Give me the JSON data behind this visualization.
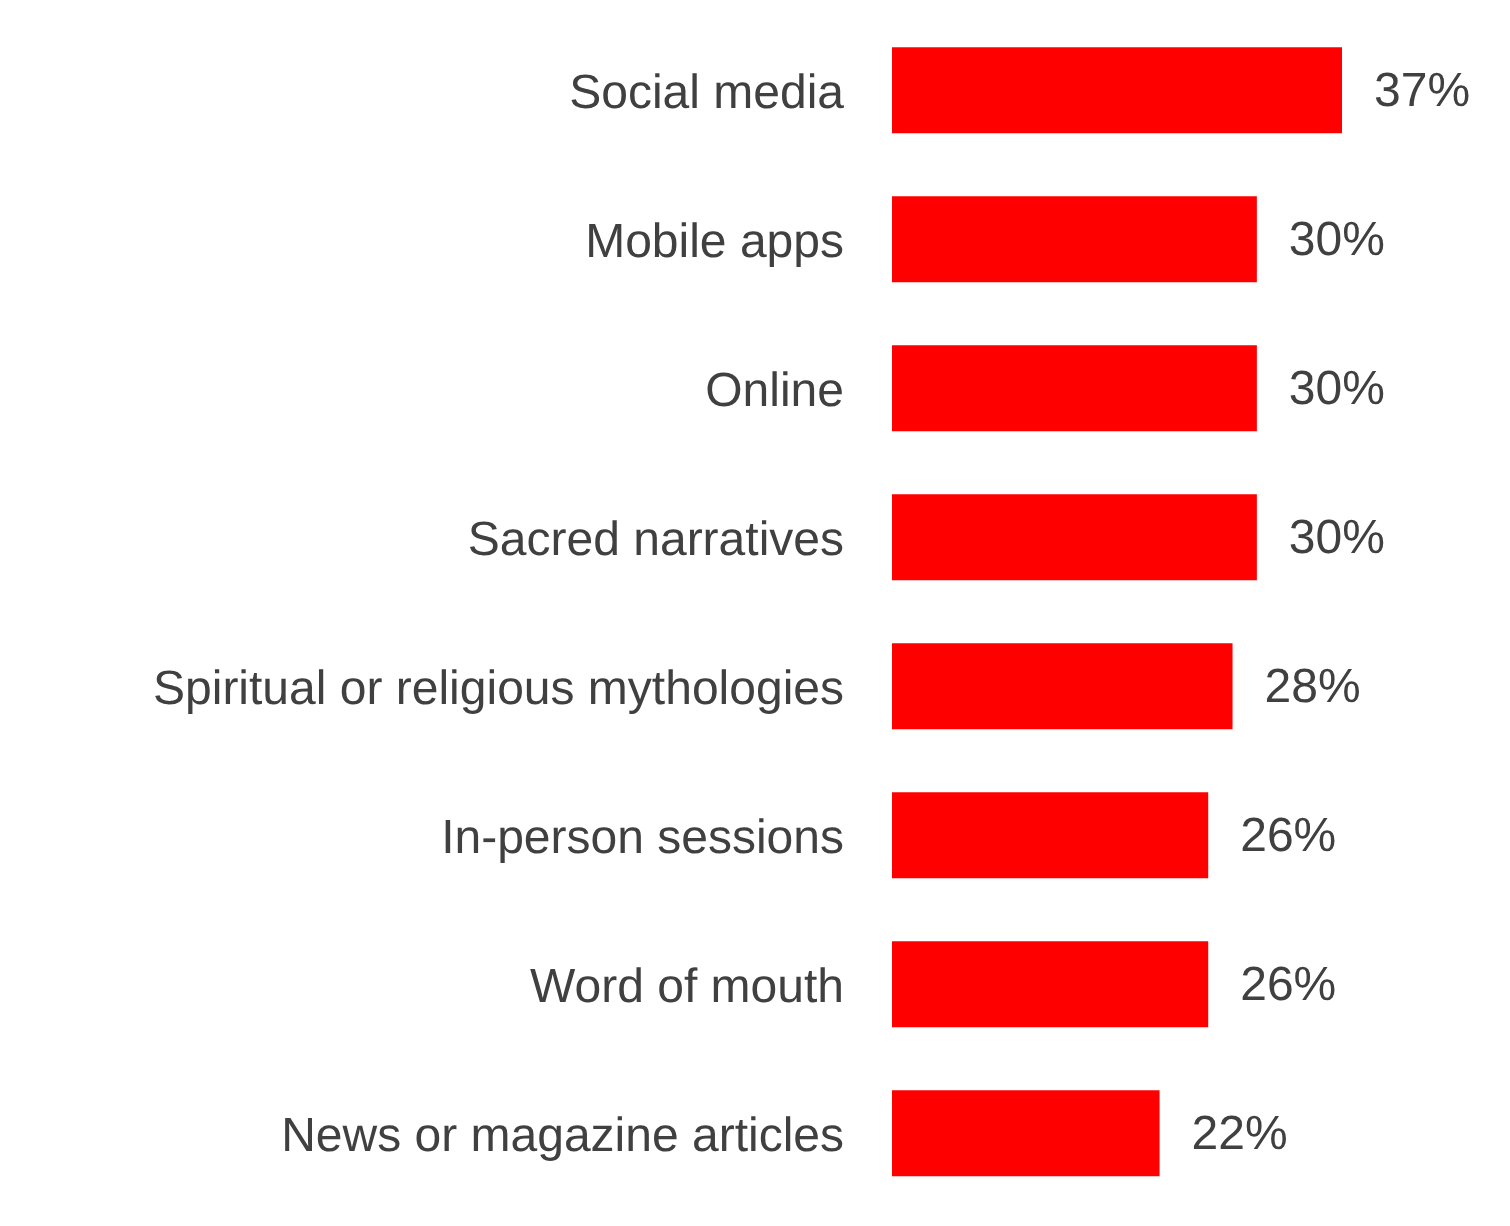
{
  "chart_data": {
    "type": "bar",
    "orientation": "horizontal",
    "categories": [
      "Social media",
      "Mobile apps",
      "Online",
      "Sacred narratives",
      "Spiritual or religious mythologies",
      "In-person sessions",
      "Word of mouth",
      "News or magazine articles"
    ],
    "values": [
      37,
      30,
      30,
      30,
      28,
      26,
      26,
      22
    ],
    "value_labels": [
      "37%",
      "30%",
      "30%",
      "30%",
      "28%",
      "26%",
      "26%",
      "22%"
    ],
    "color": "#ff0000"
  }
}
